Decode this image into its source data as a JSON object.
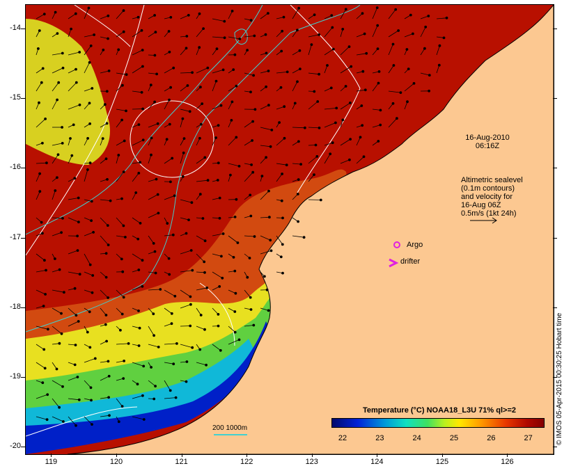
{
  "map": {
    "lon_range": [
      118.6,
      126.7
    ],
    "lat_range": [
      -20.1,
      -13.65
    ],
    "lat_ticks": [
      "-14",
      "-15",
      "-16",
      "-17",
      "-18",
      "-19",
      "-20"
    ],
    "lon_ticks": [
      "119",
      "120",
      "121",
      "122",
      "123",
      "124",
      "125",
      "126"
    ],
    "land_color": "#fcc891",
    "contour_color": "#ffffff",
    "isobath_color": "#40d0d0"
  },
  "annotations": {
    "date": "16-Aug-2010",
    "time": "06:16Z",
    "altimetry_lines": [
      "Altimetric sealevel",
      "(0.1m contours)",
      "and velocity for",
      "16-Aug 06Z",
      "0.5m/s (1kt 24h)"
    ],
    "argo_label": "Argo",
    "drifter_label": "drifter",
    "argo_color": "#e020e0",
    "drifter_color": "#e020e0"
  },
  "scale": {
    "isobath_label": "200  1000m"
  },
  "colorbar": {
    "title": "Temperature (°C) NOAA18_L3U 71% ql>=2",
    "ticks": [
      "22",
      "23",
      "24",
      "25",
      "26",
      "27"
    ],
    "min": 21.7,
    "max": 27.4
  },
  "credit": "© IMOS 05-Apr-2015 00:30:25 Hobart time"
}
